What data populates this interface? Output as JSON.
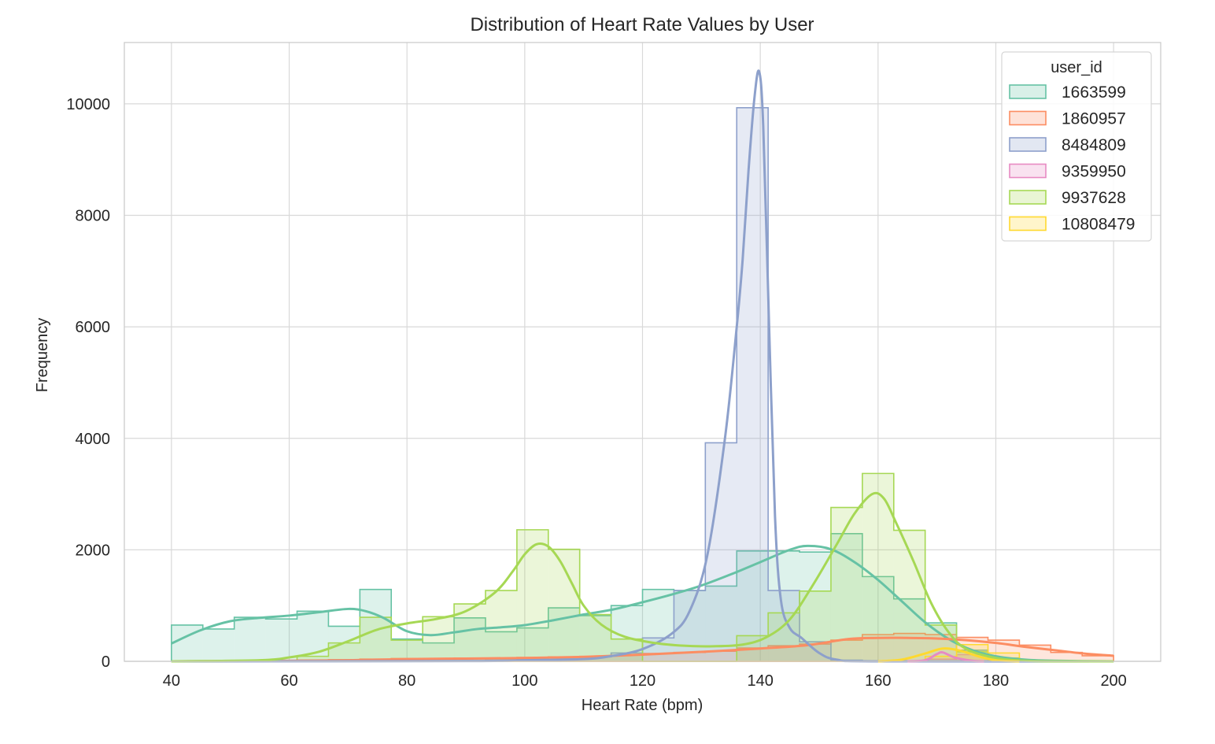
{
  "chart_data": {
    "type": "histogram",
    "title": "Distribution of Heart Rate Values by User",
    "xlabel": "Heart Rate (bpm)",
    "ylabel": "Frequency",
    "xlim": [
      32,
      208
    ],
    "ylim": [
      0,
      11100
    ],
    "xticks": [
      40,
      60,
      80,
      100,
      120,
      140,
      160,
      180,
      200
    ],
    "yticks": [
      0,
      2000,
      4000,
      6000,
      8000,
      10000
    ],
    "grid": true,
    "legend": {
      "title": "user_id",
      "position": "top-right"
    },
    "bin_edges": [
      40,
      45.333,
      50.667,
      56,
      61.333,
      66.667,
      72,
      77.333,
      82.667,
      88,
      93.333,
      98.667,
      104,
      109.333,
      114.667,
      120,
      125.333,
      130.667,
      136,
      141.333,
      146.667,
      152,
      157.333,
      162.667,
      168,
      173.333,
      178.667,
      184,
      189.333,
      194.667,
      200
    ],
    "series": [
      {
        "name": "1663599",
        "color": "#66c2a5",
        "counts": [
          650,
          580,
          790,
          760,
          900,
          630,
          1290,
          400,
          330,
          780,
          530,
          600,
          960,
          820,
          1000,
          1290,
          1270,
          1350,
          1980,
          1980,
          1960,
          2290,
          1520,
          1120,
          690,
          200,
          60,
          0,
          0,
          0
        ],
        "kde": [
          [
            40,
            320
          ],
          [
            45,
            560
          ],
          [
            50,
            720
          ],
          [
            55,
            780
          ],
          [
            60,
            820
          ],
          [
            65,
            880
          ],
          [
            70,
            940
          ],
          [
            73,
            900
          ],
          [
            76,
            780
          ],
          [
            80,
            540
          ],
          [
            84,
            470
          ],
          [
            88,
            520
          ],
          [
            92,
            580
          ],
          [
            96,
            610
          ],
          [
            100,
            650
          ],
          [
            105,
            740
          ],
          [
            110,
            840
          ],
          [
            115,
            930
          ],
          [
            120,
            1060
          ],
          [
            125,
            1200
          ],
          [
            130,
            1360
          ],
          [
            135,
            1560
          ],
          [
            140,
            1780
          ],
          [
            145,
            2000
          ],
          [
            148,
            2070
          ],
          [
            152,
            2010
          ],
          [
            156,
            1780
          ],
          [
            160,
            1460
          ],
          [
            164,
            1080
          ],
          [
            168,
            700
          ],
          [
            172,
            400
          ],
          [
            176,
            200
          ],
          [
            180,
            90
          ],
          [
            185,
            30
          ],
          [
            190,
            10
          ],
          [
            200,
            0
          ]
        ]
      },
      {
        "name": "1860957",
        "color": "#fc8d62",
        "counts": [
          0,
          0,
          0,
          10,
          20,
          30,
          40,
          50,
          50,
          60,
          60,
          70,
          80,
          90,
          110,
          140,
          160,
          180,
          240,
          280,
          310,
          380,
          480,
          500,
          480,
          430,
          380,
          290,
          160,
          100
        ],
        "kde": [
          [
            40,
            0
          ],
          [
            60,
            10
          ],
          [
            70,
            20
          ],
          [
            80,
            40
          ],
          [
            90,
            50
          ],
          [
            100,
            60
          ],
          [
            110,
            80
          ],
          [
            120,
            120
          ],
          [
            130,
            170
          ],
          [
            140,
            230
          ],
          [
            148,
            290
          ],
          [
            155,
            400
          ],
          [
            160,
            420
          ],
          [
            165,
            420
          ],
          [
            170,
            410
          ],
          [
            175,
            380
          ],
          [
            180,
            330
          ],
          [
            185,
            260
          ],
          [
            190,
            200
          ],
          [
            195,
            140
          ],
          [
            200,
            100
          ]
        ]
      },
      {
        "name": "8484809",
        "color": "#8da0cb",
        "counts": [
          0,
          0,
          0,
          0,
          0,
          0,
          0,
          0,
          0,
          10,
          20,
          40,
          60,
          80,
          150,
          420,
          1270,
          3920,
          9930,
          1270,
          350,
          20,
          0,
          0,
          0,
          0,
          0,
          0,
          0,
          0
        ],
        "kde": [
          [
            40,
            0
          ],
          [
            90,
            5
          ],
          [
            100,
            20
          ],
          [
            110,
            40
          ],
          [
            115,
            100
          ],
          [
            120,
            220
          ],
          [
            125,
            500
          ],
          [
            128,
            900
          ],
          [
            131,
            1900
          ],
          [
            134,
            4000
          ],
          [
            136,
            6000
          ],
          [
            137,
            7200
          ],
          [
            138,
            8800
          ],
          [
            139,
            10100
          ],
          [
            139.8,
            10580
          ],
          [
            140.5,
            9600
          ],
          [
            141.5,
            6000
          ],
          [
            142.5,
            2600
          ],
          [
            143.5,
            1100
          ],
          [
            145,
            600
          ],
          [
            147,
            420
          ],
          [
            150,
            150
          ],
          [
            153,
            30
          ],
          [
            160,
            0
          ],
          [
            200,
            0
          ]
        ]
      },
      {
        "name": "9359950",
        "color": "#e78ac3",
        "counts": [
          0,
          0,
          0,
          0,
          0,
          0,
          0,
          0,
          0,
          0,
          0,
          0,
          0,
          0,
          0,
          0,
          0,
          0,
          0,
          0,
          0,
          0,
          0,
          0,
          40,
          120,
          0,
          0,
          0,
          0
        ],
        "kde": [
          [
            165,
            0
          ],
          [
            168,
            20
          ],
          [
            170,
            130
          ],
          [
            171,
            160
          ],
          [
            173,
            70
          ],
          [
            176,
            10
          ],
          [
            178,
            0
          ]
        ]
      },
      {
        "name": "9937628",
        "color": "#a6d854",
        "counts": [
          0,
          0,
          0,
          0,
          90,
          330,
          790,
          380,
          800,
          1030,
          1270,
          2360,
          2010,
          840,
          400,
          0,
          0,
          0,
          460,
          870,
          1260,
          2760,
          3370,
          2350,
          650,
          170,
          60,
          0,
          0,
          0
        ],
        "kde": [
          [
            40,
            0
          ],
          [
            55,
            20
          ],
          [
            60,
            70
          ],
          [
            65,
            170
          ],
          [
            70,
            360
          ],
          [
            75,
            570
          ],
          [
            80,
            680
          ],
          [
            85,
            760
          ],
          [
            90,
            900
          ],
          [
            95,
            1240
          ],
          [
            98,
            1620
          ],
          [
            100,
            1920
          ],
          [
            102,
            2100
          ],
          [
            104,
            2060
          ],
          [
            106,
            1800
          ],
          [
            108,
            1400
          ],
          [
            110,
            1000
          ],
          [
            113,
            660
          ],
          [
            117,
            440
          ],
          [
            122,
            330
          ],
          [
            127,
            280
          ],
          [
            132,
            270
          ],
          [
            137,
            300
          ],
          [
            141,
            430
          ],
          [
            145,
            750
          ],
          [
            149,
            1380
          ],
          [
            153,
            2100
          ],
          [
            156,
            2650
          ],
          [
            159,
            3000
          ],
          [
            161,
            2920
          ],
          [
            163,
            2500
          ],
          [
            166,
            1800
          ],
          [
            169,
            1050
          ],
          [
            172,
            520
          ],
          [
            175,
            220
          ],
          [
            180,
            60
          ],
          [
            185,
            10
          ],
          [
            190,
            0
          ],
          [
            200,
            0
          ]
        ]
      },
      {
        "name": "10808479",
        "color": "#ffd92f",
        "counts": [
          0,
          0,
          0,
          0,
          0,
          0,
          0,
          0,
          0,
          0,
          0,
          0,
          0,
          0,
          0,
          0,
          0,
          0,
          0,
          0,
          0,
          0,
          0,
          0,
          90,
          300,
          150,
          0,
          0,
          0
        ],
        "kde": [
          [
            160,
            0
          ],
          [
            164,
            30
          ],
          [
            168,
            140
          ],
          [
            171,
            230
          ],
          [
            174,
            190
          ],
          [
            177,
            90
          ],
          [
            180,
            20
          ],
          [
            184,
            0
          ]
        ]
      }
    ]
  }
}
